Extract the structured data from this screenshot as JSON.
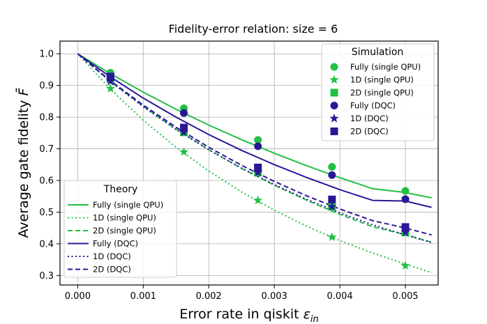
{
  "chart_data": {
    "type": "line",
    "title": "Fidelity-error relation: size = 6",
    "xlabel": "Error rate in qiskit",
    "xlabel_symbol": "ε",
    "xlabel_subscript": "in",
    "ylabel": "Average gate fidelity",
    "ylabel_symbol": "F̄",
    "xlim": [
      -0.00027,
      0.0055
    ],
    "ylim": [
      0.27,
      1.04
    ],
    "xticks": [
      0.0,
      0.001,
      0.002,
      0.003,
      0.004,
      0.005
    ],
    "xtick_labels": [
      "0.000",
      "0.001",
      "0.002",
      "0.003",
      "0.004",
      "0.005"
    ],
    "yticks": [
      0.3,
      0.4,
      0.5,
      0.6,
      0.7,
      0.8,
      0.9,
      1.0
    ],
    "ytick_labels": [
      "0.3",
      "0.4",
      "0.5",
      "0.6",
      "0.7",
      "0.8",
      "0.9",
      "1.0"
    ],
    "grid": true,
    "colors": {
      "single_qpu": "#22c043",
      "dqc": "#2a1796"
    },
    "legends": [
      {
        "title": "Simulation",
        "placement": "top-right"
      },
      {
        "title": "Theory",
        "placement": "bottom-left"
      }
    ],
    "theory": [
      {
        "name": "Fully (single QPU)",
        "style": "solid",
        "color": "#22c043",
        "x": [
          0.0,
          0.0005,
          0.001,
          0.0015,
          0.002,
          0.0025,
          0.003,
          0.0035,
          0.004,
          0.0045,
          0.005,
          0.0054
        ],
        "y": [
          1.0,
          0.937,
          0.879,
          0.825,
          0.775,
          0.729,
          0.686,
          0.646,
          0.609,
          0.574,
          0.562,
          0.545
        ]
      },
      {
        "name": "1D (single QPU)",
        "style": "dotted",
        "color": "#22c043",
        "x": [
          0.0,
          0.0005,
          0.001,
          0.0015,
          0.002,
          0.0025,
          0.003,
          0.0035,
          0.004,
          0.0045,
          0.005,
          0.0054
        ],
        "y": [
          1.0,
          0.888,
          0.79,
          0.705,
          0.63,
          0.564,
          0.506,
          0.455,
          0.41,
          0.371,
          0.336,
          0.309
        ]
      },
      {
        "name": "2D (single QPU)",
        "style": "dashed",
        "color": "#22c043",
        "x": [
          0.0,
          0.0005,
          0.001,
          0.0015,
          0.002,
          0.0025,
          0.003,
          0.0035,
          0.004,
          0.0045,
          0.005,
          0.0054
        ],
        "y": [
          1.0,
          0.913,
          0.834,
          0.762,
          0.697,
          0.638,
          0.585,
          0.537,
          0.493,
          0.454,
          0.429,
          0.405
        ]
      },
      {
        "name": "Fully (DQC)",
        "style": "solid",
        "color": "#2a1796",
        "x": [
          0.0,
          0.0005,
          0.001,
          0.0015,
          0.002,
          0.0025,
          0.003,
          0.0035,
          0.004,
          0.0045,
          0.005,
          0.0054
        ],
        "y": [
          1.0,
          0.927,
          0.86,
          0.8,
          0.745,
          0.695,
          0.65,
          0.609,
          0.571,
          0.537,
          0.535,
          0.515
        ]
      },
      {
        "name": "1D (DQC)",
        "style": "dotted",
        "color": "#2a1796",
        "x": [
          0.0,
          0.0005,
          0.001,
          0.0015,
          0.002,
          0.0025,
          0.003,
          0.0035,
          0.004,
          0.0045,
          0.005,
          0.0054
        ],
        "y": [
          1.0,
          0.912,
          0.833,
          0.761,
          0.697,
          0.639,
          0.587,
          0.54,
          0.498,
          0.46,
          0.428,
          0.404
        ]
      },
      {
        "name": "2D (DQC)",
        "style": "dashed",
        "color": "#2a1796",
        "x": [
          0.0,
          0.0005,
          0.001,
          0.0015,
          0.002,
          0.0025,
          0.003,
          0.0035,
          0.004,
          0.0045,
          0.005,
          0.0054
        ],
        "y": [
          1.0,
          0.915,
          0.838,
          0.768,
          0.705,
          0.648,
          0.597,
          0.551,
          0.51,
          0.473,
          0.45,
          0.428
        ]
      }
    ],
    "simulation": [
      {
        "name": "Fully (single QPU)",
        "marker": "circle",
        "color": "#22c043",
        "x": [
          0.0005,
          0.00162,
          0.00275,
          0.00388,
          0.005
        ],
        "y": [
          0.94,
          0.828,
          0.728,
          0.643,
          0.567
        ]
      },
      {
        "name": "1D (single QPU)",
        "marker": "star",
        "color": "#22c043",
        "x": [
          0.0005,
          0.00162,
          0.00275,
          0.00388,
          0.005
        ],
        "y": [
          0.89,
          0.69,
          0.537,
          0.421,
          0.331
        ]
      },
      {
        "name": "2D (single QPU)",
        "marker": "square",
        "color": "#22c043",
        "x": [
          0.0005,
          0.00162,
          0.00275,
          0.00388,
          0.005
        ],
        "y": [
          0.92,
          0.752,
          0.625,
          0.517,
          0.436
        ]
      },
      {
        "name": "Fully (DQC)",
        "marker": "circle",
        "color": "#2a1796",
        "x": [
          0.0005,
          0.00162,
          0.00275,
          0.00388,
          0.005
        ],
        "y": [
          0.925,
          0.813,
          0.708,
          0.617,
          0.541
        ]
      },
      {
        "name": "1D (DQC)",
        "marker": "star",
        "color": "#2a1796",
        "x": [
          0.0005,
          0.00162,
          0.00275,
          0.00388,
          0.005
        ],
        "y": [
          0.913,
          0.752,
          0.625,
          0.517,
          0.436
        ]
      },
      {
        "name": "2D (DQC)",
        "marker": "square",
        "color": "#2a1796",
        "x": [
          0.0005,
          0.00162,
          0.00275,
          0.00388,
          0.005
        ],
        "y": [
          0.928,
          0.767,
          0.641,
          0.54,
          0.453
        ]
      }
    ]
  }
}
